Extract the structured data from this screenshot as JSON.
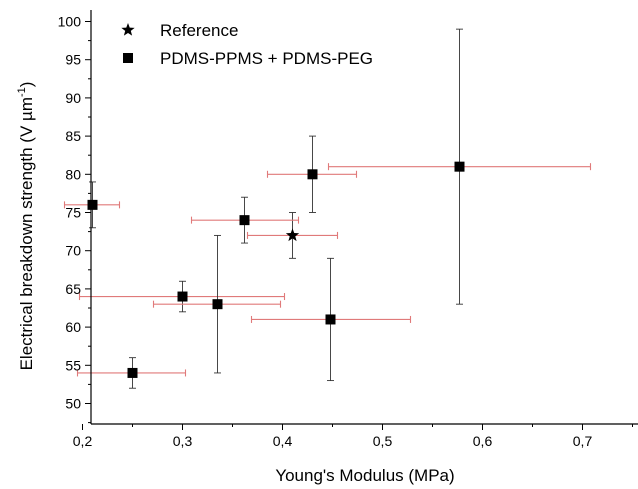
{
  "chart_data": {
    "type": "scatter",
    "title": "",
    "xlabel": "Young's Modulus (MPa)",
    "ylabel_main": "Electrical breakdown strength (V µm",
    "ylabel_sup": "-1",
    "ylabel_close": ")",
    "xlim": [
      0.15,
      0.75
    ],
    "ylim": [
      47,
      100
    ],
    "x_ticks": [
      0.2,
      0.3,
      0.4,
      0.5,
      0.6,
      0.7
    ],
    "x_tick_labels": [
      "0,2",
      "0,3",
      "0,4",
      "0,5",
      "0,6",
      "0,7"
    ],
    "y_ticks": [
      50,
      55,
      60,
      65,
      70,
      75,
      80,
      85,
      90,
      95,
      100
    ],
    "y_tick_labels": [
      "50",
      "55",
      "60",
      "65",
      "70",
      "75",
      "80",
      "85",
      "90",
      "95",
      "100"
    ],
    "grid": false,
    "legend_position": "top-left",
    "colors": {
      "marker": "#000000",
      "x_error": "#e07a7a",
      "y_error": "#333333"
    },
    "series": [
      {
        "name": "Reference",
        "marker": "star",
        "points": [
          {
            "x": 0.41,
            "y": 72,
            "xerr": [
              0.365,
              0.455
            ],
            "yerr": [
              69,
              75
            ]
          }
        ]
      },
      {
        "name": "PDMS-PPMS + PDMS-PEG",
        "marker": "square",
        "points": [
          {
            "x": 0.21,
            "y": 76,
            "xerr": [
              0.182,
              0.237
            ],
            "yerr": [
              73,
              79
            ]
          },
          {
            "x": 0.25,
            "y": 54,
            "xerr": [
              0.195,
              0.303
            ],
            "yerr": [
              52,
              56
            ]
          },
          {
            "x": 0.3,
            "y": 64,
            "xerr": [
              0.197,
              0.402
            ],
            "yerr": [
              62,
              66
            ]
          },
          {
            "x": 0.335,
            "y": 63,
            "xerr": [
              0.271,
              0.398
            ],
            "yerr": [
              54,
              72
            ]
          },
          {
            "x": 0.362,
            "y": 74,
            "xerr": [
              0.309,
              0.416
            ],
            "yerr": [
              71,
              77
            ]
          },
          {
            "x": 0.43,
            "y": 80,
            "xerr": [
              0.385,
              0.474
            ],
            "yerr": [
              75,
              85
            ]
          },
          {
            "x": 0.448,
            "y": 61,
            "xerr": [
              0.369,
              0.528
            ],
            "yerr": [
              53,
              69
            ]
          },
          {
            "x": 0.577,
            "y": 81,
            "xerr": [
              0.446,
              0.708
            ],
            "yerr": [
              63,
              99
            ]
          }
        ]
      }
    ]
  }
}
